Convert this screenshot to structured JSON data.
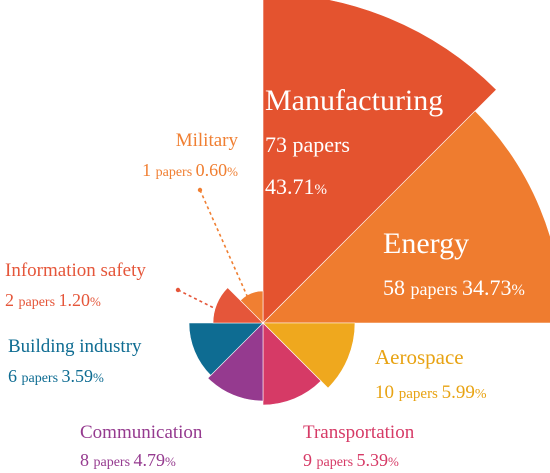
{
  "chart_data": {
    "type": "pie",
    "variant": "rose",
    "unit_label": "papers",
    "categories": [
      {
        "name": "Manufacturing",
        "papers": 73,
        "percent": "43.71",
        "color": "#E4532F"
      },
      {
        "name": "Energy",
        "papers": 58,
        "percent": "34.73",
        "color": "#EF7C2F"
      },
      {
        "name": "Aerospace",
        "papers": 10,
        "percent": "5.99",
        "color": "#EFA81E"
      },
      {
        "name": "Transportation",
        "papers": 9,
        "percent": "5.39",
        "color": "#D63A66"
      },
      {
        "name": "Communication",
        "papers": 8,
        "percent": "4.79",
        "color": "#953A8F"
      },
      {
        "name": "Building industry",
        "papers": 6,
        "percent": "3.59",
        "color": "#0E6C92"
      },
      {
        "name": "Information safety",
        "papers": 2,
        "percent": "1.20",
        "color": "#E5563A"
      },
      {
        "name": "Military",
        "papers": 1,
        "percent": "0.60",
        "color": "#F07F32"
      }
    ]
  }
}
